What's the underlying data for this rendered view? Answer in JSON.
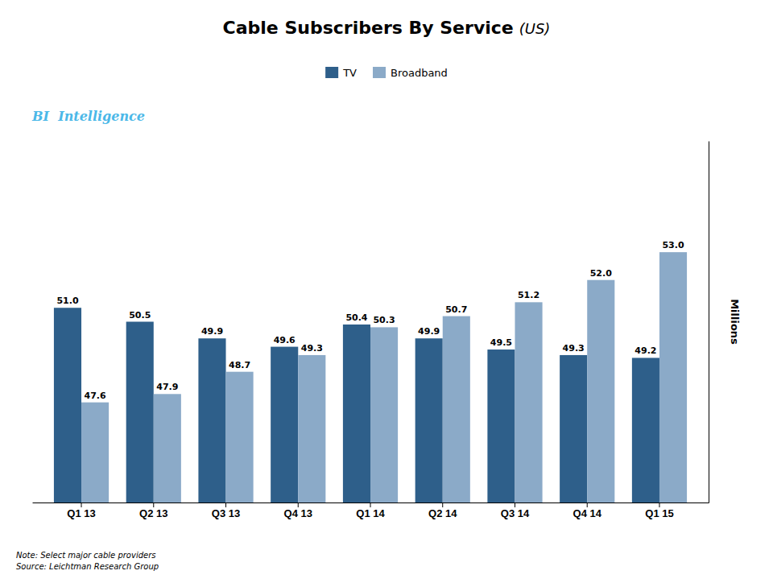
{
  "chart_data": {
    "type": "bar",
    "title": "Cable Subscribers By Service",
    "subtitle": "(US)",
    "ylabel": "Millions",
    "annotations": [
      "BI  Intelligence",
      "Note: Select major cable providers",
      "Source: Leichtman Research Group"
    ],
    "categories": [
      "Q1 13",
      "Q2 13",
      "Q3 13",
      "Q4 13",
      "Q1 14",
      "Q2 14",
      "Q3 14",
      "Q4 14",
      "Q1 15"
    ],
    "series": [
      {
        "name": "TV",
        "color": "#2E5F8A",
        "values": [
          51.0,
          50.5,
          49.9,
          49.6,
          50.4,
          49.9,
          49.5,
          49.3,
          49.2
        ],
        "value_labels": [
          "51.0",
          "50.5",
          "49.9",
          "49.6",
          "50.4",
          "49.9",
          "49.5",
          "49.3",
          "49.2"
        ]
      },
      {
        "name": "Broadband",
        "color": "#8BAAC8",
        "values": [
          47.6,
          47.9,
          48.7,
          49.3,
          50.3,
          50.7,
          51.2,
          52.0,
          53.0
        ],
        "value_labels": [
          "47.6",
          "47.9",
          "48.7",
          "49.3",
          "50.3",
          "50.7",
          "51.2",
          "52.0",
          "53.0"
        ]
      }
    ],
    "ylim": [
      44,
      57
    ],
    "tick_labels": "x",
    "grid": false,
    "legend": "top",
    "data_labels": true
  }
}
